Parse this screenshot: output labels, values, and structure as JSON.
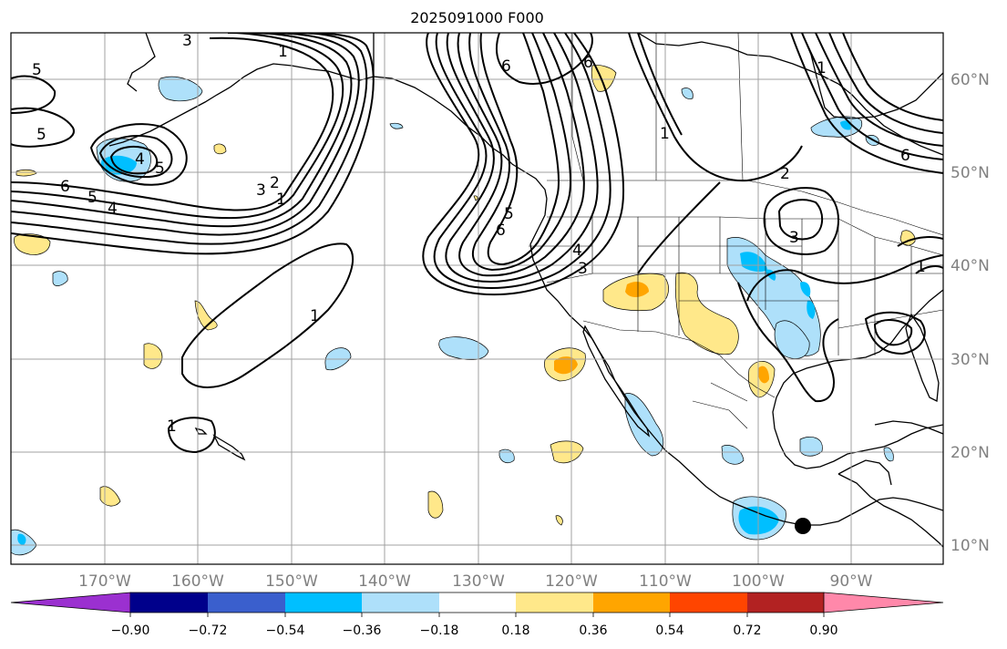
{
  "title": "2025091000 F000",
  "longitude_labels": [
    "170°W",
    "160°W",
    "150°W",
    "140°W",
    "130°W",
    "120°W",
    "110°W",
    "100°W",
    "90°W"
  ],
  "latitude_labels": [
    "60°N",
    "50°N",
    "40°N",
    "30°N",
    "20°N",
    "10°N"
  ],
  "colorbar": {
    "ticks": [
      "−0.90",
      "−0.72",
      "−0.54",
      "−0.36",
      "−0.18",
      "0.18",
      "0.36",
      "0.54",
      "0.72",
      "0.90"
    ],
    "colors": [
      "#9b30d0",
      "#00008b",
      "#3a5fcd",
      "#00bfff",
      "#aee0fa",
      "#ffffff",
      "#ffe88a",
      "#ffa500",
      "#ff4500",
      "#b22222",
      "#ff88aa"
    ]
  },
  "contour_labels": [
    "5",
    "5",
    "4",
    "5",
    "6",
    "5",
    "4",
    "3",
    "2",
    "1",
    "1",
    "3",
    "1",
    "1",
    "6",
    "5",
    "4",
    "3",
    "6",
    "6",
    "1",
    "1",
    "2",
    "3",
    "6",
    "1"
  ],
  "colors": {
    "frame": "#000000",
    "grid": "#a0a0a0",
    "land": "#000000",
    "neg_light": "#aee0fa",
    "neg_mid": "#00bfff",
    "pos_light": "#ffe88a",
    "pos_mid": "#ffa500"
  },
  "marker": "station-dot"
}
